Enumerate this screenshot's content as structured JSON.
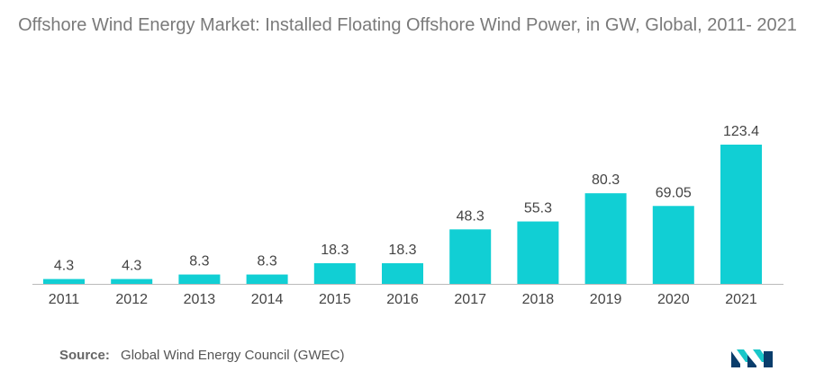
{
  "title": "Offshore Wind Energy Market: Installed Floating Offshore Wind Power, in GW, Global, 2011- 2021",
  "source": {
    "label": "Source:",
    "text": "Global Wind Energy Council (GWEC)"
  },
  "logo": {
    "icon": "mordor-logo-icon",
    "colors": [
      "#0a3d6b",
      "#19c7c9"
    ]
  },
  "colors": {
    "bar": "#11cfd4",
    "text": "#444444",
    "axis": "#bbbbbb"
  },
  "chart_data": {
    "type": "bar",
    "categories": [
      "2011",
      "2012",
      "2013",
      "2014",
      "2015",
      "2016",
      "2017",
      "2018",
      "2019",
      "2020",
      "2021"
    ],
    "values": [
      4.3,
      4.3,
      8.3,
      8.3,
      18.3,
      18.3,
      48.3,
      55.3,
      80.3,
      69.05,
      123.4
    ],
    "value_labels": [
      "4.3",
      "4.3",
      "8.3",
      "8.3",
      "18.3",
      "18.3",
      "48.3",
      "55.3",
      "80.3",
      "69.05",
      "123.4"
    ],
    "title": "Offshore Wind Energy Market: Installed Floating Offshore Wind Power, in GW, Global, 2011- 2021",
    "xlabel": "",
    "ylabel": "",
    "ylim": [
      0,
      123.4
    ],
    "grid": false,
    "legend": "none"
  }
}
